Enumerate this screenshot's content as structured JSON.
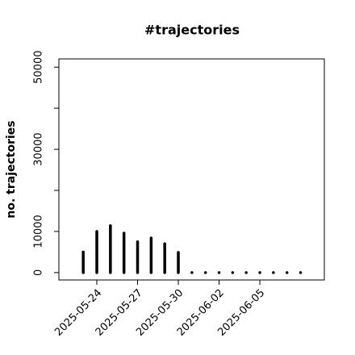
{
  "chart_data": {
    "type": "bar",
    "title": "#trajectories",
    "y_label": "no. trajectories",
    "x": [
      "2025-05-23",
      "2025-05-24",
      "2025-05-25",
      "2025-05-26",
      "2025-05-27",
      "2025-05-28",
      "2025-05-29",
      "2025-05-30",
      "2025-05-31",
      "2025-06-01",
      "2025-06-02",
      "2025-06-03",
      "2025-06-04",
      "2025-06-05",
      "2025-06-06",
      "2025-06-07",
      "2025-06-08"
    ],
    "values": [
      5000,
      10000,
      11400,
      9600,
      7500,
      8400,
      7000,
      4900,
      0,
      0,
      0,
      0,
      0,
      0,
      0,
      0,
      0
    ],
    "color": "#000000",
    "xlim": [
      "2025-05-21T05:00:00Z",
      "2025-06-09T18:00:00Z"
    ],
    "xticks": [
      "2025-05-24",
      "2025-05-27",
      "2025-05-30",
      "2025-06-02",
      "2025-06-05"
    ],
    "ylim": [
      -1800,
      52000
    ],
    "yticks": [
      0,
      10000,
      30000,
      50000
    ],
    "yminor": [
      20000,
      40000
    ]
  }
}
